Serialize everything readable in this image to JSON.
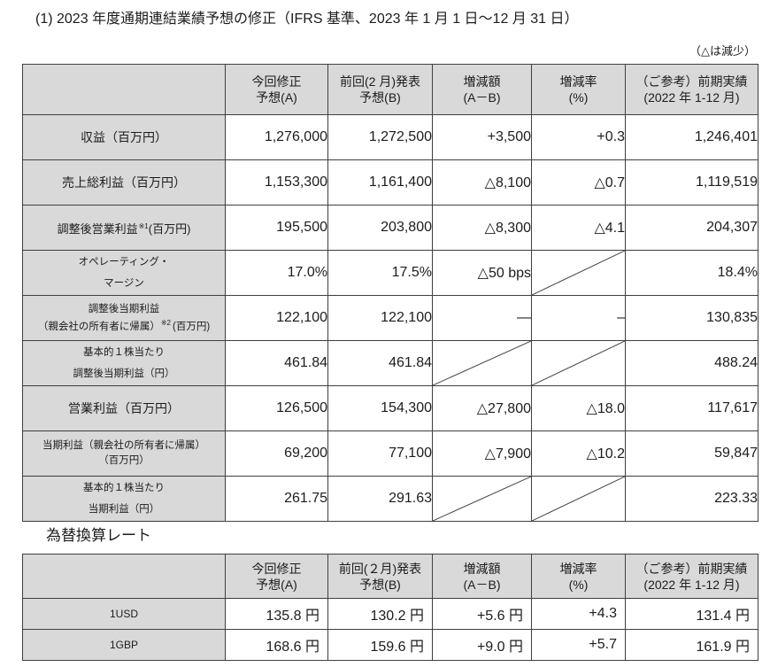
{
  "title": "(1) 2023 年度通期連結業績予想の修正（IFRS 基準、2023 年 1 月 1 日～12 月 31 日）",
  "note": "（△は減少）",
  "colors": {
    "header_background": "#d9d9d9",
    "border": "#3f3f3f",
    "text": "#1c1c1c"
  },
  "forecast_table": {
    "headers": [
      {
        "line1": "今回修正",
        "line2": "予想(A)"
      },
      {
        "line1": "前回(2 月)発表",
        "line2": "予想(B)"
      },
      {
        "line1": "増減額",
        "line2": "(A－B)"
      },
      {
        "line1": "増減率",
        "line2": "(%)"
      },
      {
        "line1": "（ご参考）前期実績",
        "line2": "(2022 年 1-12 月)"
      }
    ],
    "rows": [
      {
        "label": {
          "text": "収益（百万円）"
        },
        "values": [
          "1,276,000",
          "1,272,500",
          "+3,500",
          "+0.3",
          "1,246,401"
        ]
      },
      {
        "label": {
          "text": "売上総利益（百万円）"
        },
        "values": [
          "1,153,300",
          "1,161,400",
          "△8,100",
          "△0.7",
          "1,119,519"
        ]
      },
      {
        "label": {
          "text": "調整後営業利益",
          "sup": "※1",
          "suffix": "(百万円)"
        },
        "values": [
          "195,500",
          "203,800",
          "△8,300",
          "△4.1",
          "204,307"
        ]
      },
      {
        "label": {
          "line1": "オペレーティング・",
          "line2": "マージン"
        },
        "values": [
          "17.0%",
          "17.5%",
          "△50 bps",
          null,
          "18.4%"
        ]
      },
      {
        "label": {
          "line1": "調整後当期利益",
          "line2": "（親会社の所有者に帰属）",
          "sup": "※2",
          "suffix": "(百万円)"
        },
        "values": [
          "122,100",
          "122,100",
          "—",
          "–",
          "130,835"
        ]
      },
      {
        "label": {
          "line1": "基本的１株当たり",
          "line2": "調整後当期利益（円）"
        },
        "values": [
          "461.84",
          "461.84",
          null,
          null,
          "488.24"
        ]
      },
      {
        "label": {
          "text": "営業利益（百万円）"
        },
        "values": [
          "126,500",
          "154,300",
          "△27,800",
          "△18.0",
          "117,617"
        ]
      },
      {
        "label": {
          "line1": "当期利益（親会社の所有者に帰属）",
          "line2": "（百万円）"
        },
        "values": [
          "69,200",
          "77,100",
          "△7,900",
          "△10.2",
          "59,847"
        ]
      },
      {
        "label": {
          "line1": "基本的１株当たり",
          "line2": "当期利益（円）"
        },
        "values": [
          "261.75",
          "291.63",
          null,
          null,
          "223.33"
        ]
      }
    ]
  },
  "fx_section_title": "為替換算レート",
  "fx_table": {
    "headers": [
      {
        "line1": "今回修正",
        "line2": "予想(A)"
      },
      {
        "line1": "前回(２月)発表",
        "line2": "予想(B)"
      },
      {
        "line1": "増減額",
        "line2": "(A－B)"
      },
      {
        "line1": "増減率",
        "line2": "(%)"
      },
      {
        "line1": "（ご参考）前期実績",
        "line2": "(2022 年 1-12 月)"
      }
    ],
    "rows": [
      {
        "label": "1USD",
        "values": [
          "135.8 円",
          "130.2 円",
          "+5.6 円",
          "+4.3",
          "131.4 円"
        ]
      },
      {
        "label": "1GBP",
        "values": [
          "168.6 円",
          "159.6 円",
          "+9.0 円",
          "+5.7",
          "161.9 円"
        ]
      }
    ]
  }
}
